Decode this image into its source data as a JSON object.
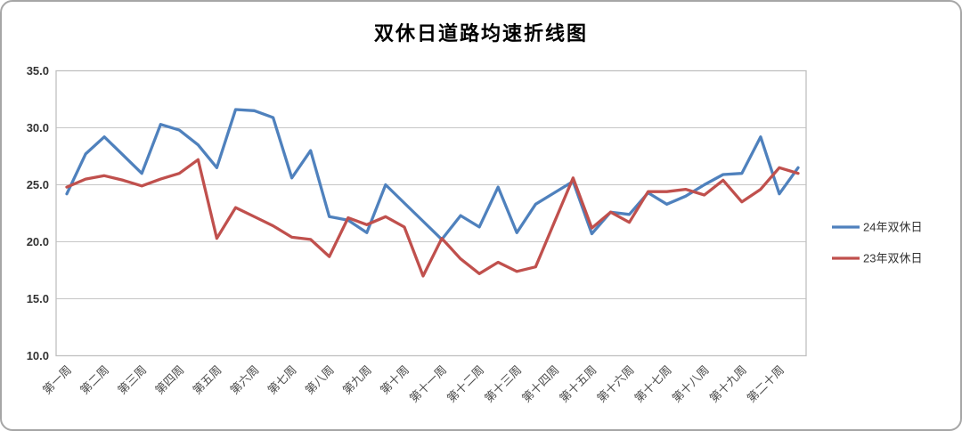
{
  "title": "双休日道路均速折线图",
  "legend": {
    "position": "right",
    "items": [
      {
        "label": "24年双休日",
        "color": "#4F81BD"
      },
      {
        "label": "23年双休日",
        "color": "#C0504D"
      }
    ]
  },
  "axes": {
    "y_tick_labels": [
      "35.0",
      "30.0",
      "25.0",
      "20.0",
      "15.0",
      "10.0"
    ],
    "x_tick_labels": [
      "第一周",
      "第二周",
      "第三周",
      "第四周",
      "第五周",
      "第六周",
      "第七周",
      "第八周",
      "第九周",
      "第十周",
      "第十一周",
      "第十二周",
      "第十三周",
      "第十四周",
      "第十五周",
      "第十六周",
      "第十七周",
      "第十八周",
      "第十九周",
      "第二十周"
    ]
  },
  "chart_data": {
    "type": "line",
    "title": "双休日道路均速折线图",
    "xlabel": "",
    "ylabel": "",
    "ylim": [
      10,
      35
    ],
    "y_tick_step": 5,
    "grid": true,
    "plot_border": true,
    "legend_position": "right",
    "x_tick_labels": [
      "第一周",
      "第二周",
      "第三周",
      "第四周",
      "第五周",
      "第六周",
      "第七周",
      "第八周",
      "第九周",
      "第十周",
      "第十一周",
      "第十二周",
      "第十三周",
      "第十四周",
      "第十五周",
      "第十六周",
      "第十七周",
      "第十八周",
      "第十九周",
      "第二十周"
    ],
    "points_per_label": 2,
    "note": "two weekend-day data points per labeled week, 40 points per series",
    "series": [
      {
        "name": "24年双休日",
        "color": "#4F81BD",
        "values": [
          24.2,
          27.7,
          29.2,
          27.6,
          26.0,
          30.3,
          29.8,
          28.5,
          26.5,
          31.6,
          31.5,
          30.9,
          25.6,
          28.0,
          22.2,
          21.9,
          20.8,
          25.0,
          23.4,
          21.8,
          20.2,
          22.3,
          21.3,
          24.8,
          20.8,
          23.3,
          24.3,
          25.3,
          20.7,
          22.6,
          22.4,
          24.3,
          23.3,
          24.0,
          25.0,
          25.9,
          26.0,
          29.2,
          24.2,
          26.5
        ]
      },
      {
        "name": "23年双休日",
        "color": "#C0504D",
        "values": [
          24.8,
          25.5,
          25.8,
          25.4,
          24.9,
          25.5,
          26.0,
          27.2,
          20.3,
          23.0,
          22.2,
          21.4,
          20.4,
          20.2,
          18.7,
          22.1,
          21.5,
          22.2,
          21.3,
          17.0,
          20.3,
          18.5,
          17.2,
          18.2,
          17.4,
          17.8,
          21.7,
          25.6,
          21.2,
          22.6,
          21.7,
          24.4,
          24.4,
          24.6,
          24.1,
          25.4,
          23.5,
          24.6,
          26.5,
          26.0
        ]
      }
    ]
  }
}
